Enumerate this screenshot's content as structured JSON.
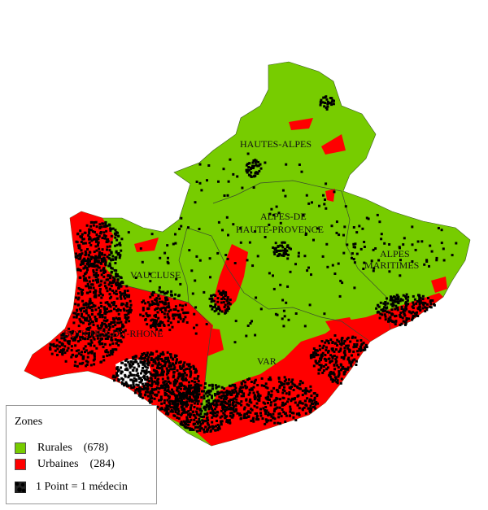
{
  "map": {
    "departments": [
      {
        "name": "HAUTES-ALPES"
      },
      {
        "name": "ALPES-DE",
        "name2": "HAUTE-PROVENCE"
      },
      {
        "name": "ALPES",
        "name2": "MARITIMES"
      },
      {
        "name": "VAUCLUSE"
      },
      {
        "name": "BOUCHES-DU-RHONE"
      },
      {
        "name": "VAR"
      }
    ],
    "colors": {
      "rural": "#77cc00",
      "urban": "#ff0000",
      "dot": "#000000",
      "border": "#3a5a20"
    }
  },
  "legend": {
    "title": "Zones",
    "items": [
      {
        "label": "Rurales",
        "count": "(678)",
        "color": "#77cc00"
      },
      {
        "label": "Urbaines",
        "count": "(284)",
        "color": "#ff0000"
      }
    ],
    "dot_label": "1 Point = 1 médecin"
  }
}
